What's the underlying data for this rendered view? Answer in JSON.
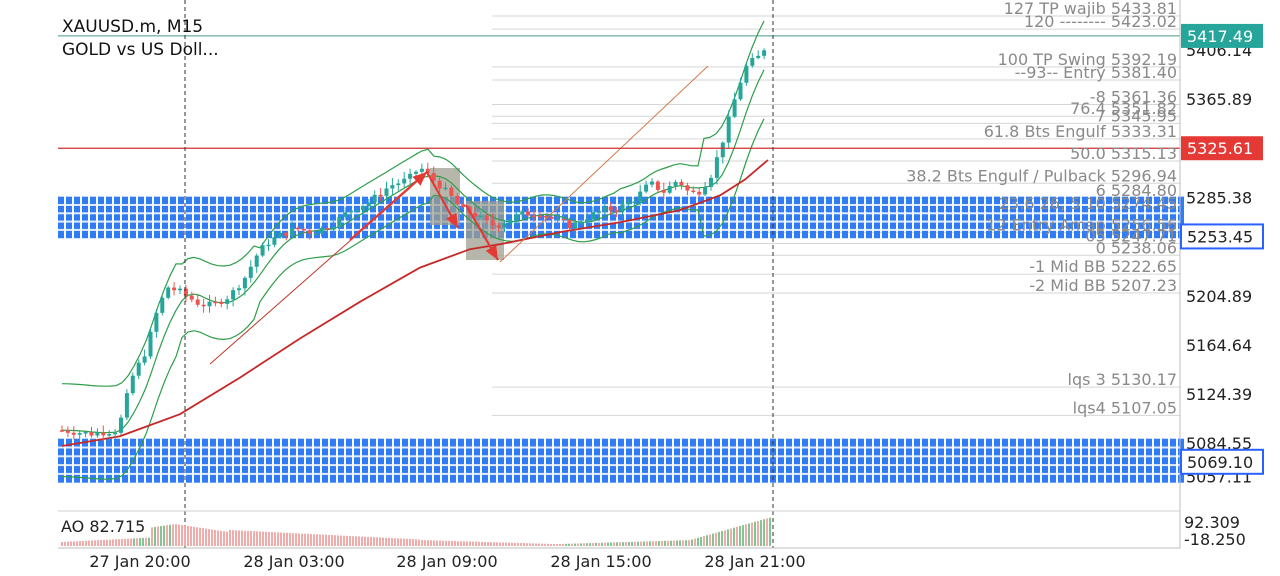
{
  "header": {
    "symbol_timeframe": "XAUUSD.m, M15",
    "description": "GOLD vs US Doll..."
  },
  "indicator": {
    "label": "AO 82.715",
    "scale_high": "92.309",
    "scale_low": "-18.250"
  },
  "chart_data": {
    "type": "candlestick",
    "symbol": "XAUUSD.m",
    "timeframe": "M15",
    "y_axis": {
      "range": [
        5042,
        5452
      ],
      "tick_labels": [
        "5406.14",
        "5365.89",
        "5325.61",
        "5285.38",
        "5253.45",
        "5204.89",
        "5164.64",
        "5124.39",
        "5084.55",
        "5069.10",
        "5057.11"
      ]
    },
    "x_axis": {
      "tick_labels": [
        "27 Jan 20:00",
        "28 Jan 03:00",
        "28 Jan 09:00",
        "28 Jan 15:00",
        "28 Jan 21:00"
      ]
    },
    "price_badges": [
      {
        "value": "5417.49",
        "price": 5417.49,
        "color": "#26a69a"
      },
      {
        "value": "5325.61",
        "price": 5325.61,
        "color": "#e53935"
      },
      {
        "value": "5253.45",
        "price": 5253.45,
        "color": "#2962ff"
      },
      {
        "value": "5069.10",
        "price": 5069.1,
        "color": "#2962ff"
      }
    ],
    "levels": [
      {
        "text": "127 TP wajib 5433.81",
        "price": 5433.81
      },
      {
        "text": "120 -------- 5423.02",
        "price": 5423.02
      },
      {
        "text": "100 TP Swing 5392.19",
        "price": 5392.19
      },
      {
        "text": "--93-- Entry 5381.40",
        "price": 5381.4
      },
      {
        "text": "-8 5361.36",
        "price": 5361.36
      },
      {
        "text": "76.4 5351.82",
        "price": 5351.82
      },
      {
        "text": "7 5345.95",
        "price": 5345.95
      },
      {
        "text": "61.8 Bts Engulf 5333.31",
        "price": 5333.31
      },
      {
        "text": "50.0 5315.13",
        "price": 5315.13
      },
      {
        "text": "38.2 Bts Engulf / Pulback 5296.94",
        "price": 5296.94
      },
      {
        "text": "6 5284.80",
        "price": 5284.8
      },
      {
        "text": "23.6 26, 5 10 5274.45",
        "price": 5274.45
      },
      {
        "text": "12 Entry Amap 5256.56",
        "price": 5256.56
      },
      {
        "text": "05 5247.71",
        "price": 5247.71
      },
      {
        "text": "0 5238.06",
        "price": 5238.06
      },
      {
        "text": "-1 Mid BB 5222.65",
        "price": 5222.65
      },
      {
        "text": "-2 Mid BB 5207.23",
        "price": 5207.23
      },
      {
        "text": "lqs 3 5130.17",
        "price": 5130.17
      },
      {
        "text": "lqs4 5107.05",
        "price": 5107.05
      }
    ],
    "red_level": 5325.61,
    "teal_level": 5417.49,
    "zones": [
      {
        "name": "upper-blue-zone",
        "top": 5286,
        "bottom": 5252
      },
      {
        "name": "lower-blue-zone",
        "top": 5088,
        "bottom": 5052
      }
    ],
    "colors": {
      "bull": "#26a69a",
      "bear": "#ef5350",
      "bands": "#2e9e4a",
      "ma": "#c62828",
      "zone": "#2f7cf6",
      "arrows": "#e53935",
      "grid": "#d6d6d6"
    }
  }
}
